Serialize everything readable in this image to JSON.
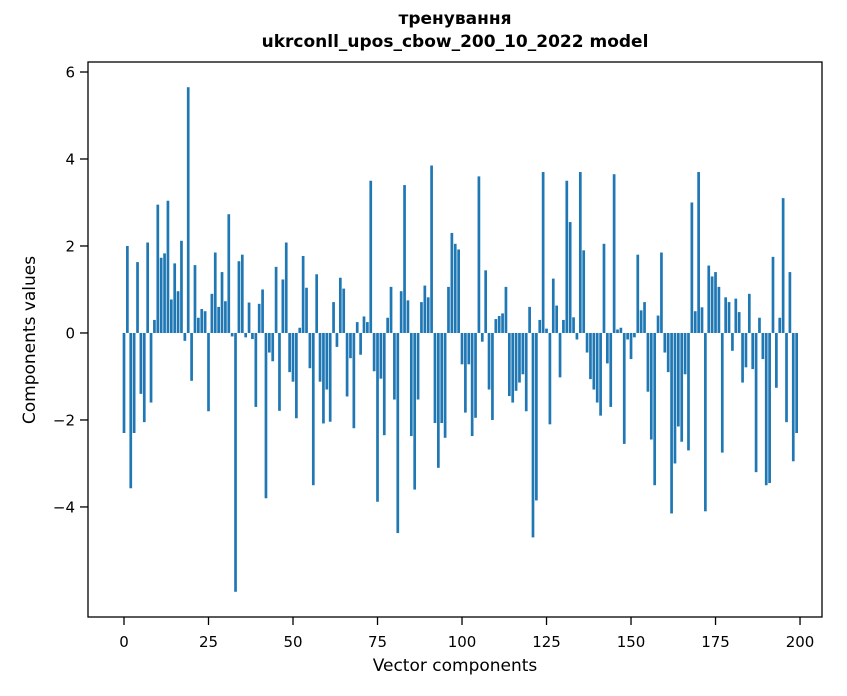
{
  "figure": {
    "title_line1": "тренування",
    "title_line2": "ukrconll_upos_cbow_200_10_2022 model",
    "xlabel": "Vector components",
    "ylabel": "Components values"
  },
  "chart_data": {
    "type": "bar",
    "title": "тренування ukrconll_upos_cbow_200_10_2022 model",
    "xlabel": "Vector components",
    "ylabel": "Components values",
    "x": "component index 0-199",
    "x_ticks": [
      0,
      25,
      50,
      75,
      100,
      125,
      150,
      175,
      200
    ],
    "y_ticks": [
      -4,
      -2,
      0,
      2,
      4,
      6
    ],
    "xlim": [
      -10.65,
      206.5
    ],
    "ylim": [
      -6.53,
      6.23
    ],
    "grid": false,
    "legend": "none",
    "bar_color": "#1f77b4",
    "values": [
      -2.3,
      2.0,
      -3.57,
      -2.3,
      1.63,
      -1.4,
      -2.05,
      2.08,
      -1.6,
      0.3,
      2.95,
      1.73,
      1.83,
      3.04,
      0.77,
      1.6,
      0.96,
      2.12,
      -0.18,
      5.65,
      -1.1,
      1.56,
      0.35,
      0.55,
      0.5,
      -1.8,
      0.9,
      1.85,
      0.6,
      1.4,
      0.73,
      2.73,
      -0.08,
      -5.95,
      1.65,
      1.8,
      -0.1,
      0.7,
      -0.14,
      -1.7,
      0.67,
      1.0,
      -3.8,
      -0.45,
      -0.65,
      1.52,
      -1.79,
      1.23,
      2.08,
      -0.9,
      -1.12,
      -1.96,
      0.12,
      1.77,
      1.04,
      -0.81,
      -3.5,
      1.35,
      -1.12,
      -2.08,
      -1.3,
      -2.04,
      0.71,
      -0.32,
      1.27,
      1.02,
      -1.46,
      -0.58,
      -2.19,
      0.25,
      -0.5,
      0.38,
      0.25,
      3.5,
      -0.88,
      -3.88,
      -1.05,
      -2.35,
      0.35,
      1.06,
      -1.53,
      -4.6,
      0.96,
      3.4,
      0.75,
      -2.37,
      -3.6,
      -1.53,
      0.71,
      1.09,
      0.82,
      3.85,
      -2.07,
      -3.1,
      -2.07,
      -2.41,
      1.06,
      2.3,
      2.05,
      1.92,
      -0.72,
      -1.83,
      -0.72,
      -2.37,
      -1.95,
      3.6,
      -0.2,
      1.44,
      -1.3,
      -2.0,
      0.32,
      0.39,
      0.45,
      1.06,
      -1.45,
      -1.6,
      -1.33,
      -1.14,
      -0.95,
      -1.8,
      0.6,
      -4.7,
      -3.85,
      0.3,
      3.7,
      0.1,
      -2.1,
      1.25,
      0.63,
      -1.02,
      0.3,
      3.5,
      2.55,
      0.36,
      -0.15,
      3.7,
      1.9,
      -0.45,
      -1.06,
      -1.3,
      -1.6,
      -1.9,
      2.05,
      -0.7,
      -1.7,
      3.65,
      0.08,
      0.12,
      -2.55,
      -0.15,
      -0.6,
      -0.1,
      1.8,
      0.52,
      0.71,
      -1.35,
      -2.45,
      -3.5,
      0.4,
      1.85,
      -0.45,
      -0.9,
      -4.15,
      -3.0,
      -2.15,
      -2.5,
      -0.95,
      -2.7,
      3.0,
      0.5,
      3.7,
      0.59,
      -4.1,
      1.55,
      1.3,
      1.4,
      1.06,
      -2.75,
      0.82,
      0.71,
      -0.41,
      0.79,
      0.48,
      -1.14,
      -0.79,
      0.9,
      -0.83,
      -3.2,
      0.35,
      -0.6,
      -3.5,
      -3.45,
      1.75,
      -1.26,
      0.35,
      3.1,
      -2.05,
      1.4,
      -2.95,
      -2.3
    ]
  }
}
